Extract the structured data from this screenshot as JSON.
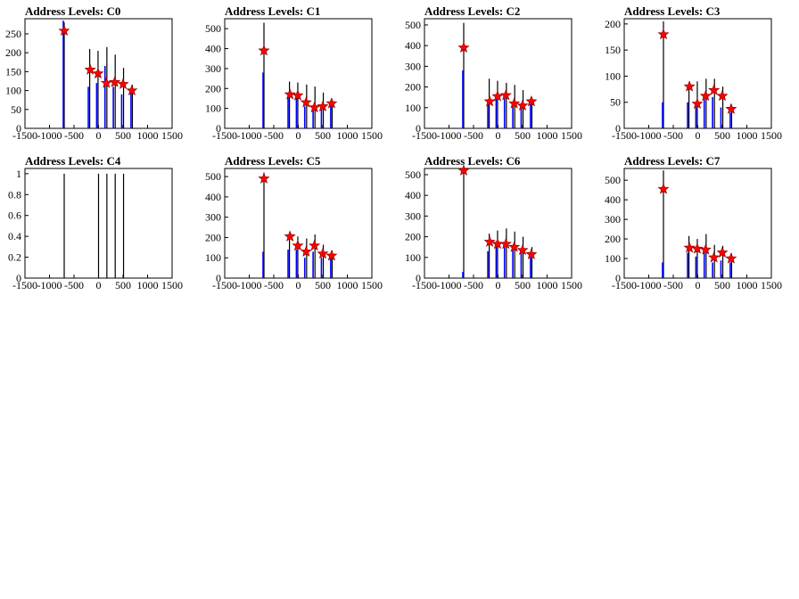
{
  "figure": {
    "background": "#ffffff"
  },
  "colors": {
    "overflow_hist": "#000000",
    "filtered_hist": "#0000ff",
    "marker": "#ff0000",
    "marker_outline": "#800000"
  },
  "chart_data": [
    {
      "type": "bar",
      "title": "Address Levels: C0",
      "xlabel": "",
      "ylabel": "",
      "xlim": [
        -1500,
        1500
      ],
      "ylim": [
        0,
        290
      ],
      "xticks": [
        -1500,
        -1000,
        -500,
        0,
        500,
        1000,
        1500
      ],
      "yticks": [
        0,
        50,
        100,
        150,
        200,
        250
      ],
      "ytick_labels": [
        "0",
        "50",
        "100",
        "150",
        "200",
        "250"
      ],
      "black_spikes": [
        {
          "x": -700,
          "y": 280
        },
        {
          "x": -180,
          "y": 210
        },
        {
          "x": -10,
          "y": 205
        },
        {
          "x": 170,
          "y": 215
        },
        {
          "x": 340,
          "y": 195
        },
        {
          "x": 510,
          "y": 160
        },
        {
          "x": 690,
          "y": 115
        }
      ],
      "blue_spikes": [
        {
          "x": -700,
          "y": 285
        },
        {
          "x": -190,
          "y": 110
        },
        {
          "x": -20,
          "y": 120
        },
        {
          "x": 150,
          "y": 165
        },
        {
          "x": 320,
          "y": 110
        },
        {
          "x": 490,
          "y": 90
        },
        {
          "x": 680,
          "y": 95
        }
      ],
      "markers": [
        {
          "x": -700,
          "y": 258
        },
        {
          "x": -170,
          "y": 155
        },
        {
          "x": -10,
          "y": 145
        },
        {
          "x": 160,
          "y": 120
        },
        {
          "x": 330,
          "y": 122
        },
        {
          "x": 500,
          "y": 117
        },
        {
          "x": 680,
          "y": 100
        }
      ]
    },
    {
      "type": "bar",
      "title": "Address Levels: C1",
      "xlabel": "",
      "ylabel": "",
      "xlim": [
        -1500,
        1500
      ],
      "ylim": [
        0,
        550
      ],
      "xticks": [
        -1500,
        -1000,
        -500,
        0,
        500,
        1000,
        1500
      ],
      "yticks": [
        0,
        100,
        200,
        300,
        400,
        500
      ],
      "ytick_labels": [
        "0",
        "100",
        "200",
        "300",
        "400",
        "500"
      ],
      "black_spikes": [
        {
          "x": -700,
          "y": 530
        },
        {
          "x": -180,
          "y": 235
        },
        {
          "x": -10,
          "y": 230
        },
        {
          "x": 170,
          "y": 220
        },
        {
          "x": 340,
          "y": 210
        },
        {
          "x": 510,
          "y": 180
        },
        {
          "x": 690,
          "y": 140
        }
      ],
      "blue_spikes": [
        {
          "x": -700,
          "y": 280
        },
        {
          "x": -190,
          "y": 160
        },
        {
          "x": -20,
          "y": 160
        },
        {
          "x": 150,
          "y": 110
        },
        {
          "x": 320,
          "y": 110
        },
        {
          "x": 490,
          "y": 100
        },
        {
          "x": 680,
          "y": 130
        }
      ],
      "markers": [
        {
          "x": -700,
          "y": 390
        },
        {
          "x": -170,
          "y": 170
        },
        {
          "x": -10,
          "y": 165
        },
        {
          "x": 160,
          "y": 130
        },
        {
          "x": 330,
          "y": 105
        },
        {
          "x": 500,
          "y": 110
        },
        {
          "x": 680,
          "y": 125
        }
      ]
    },
    {
      "type": "bar",
      "title": "Address Levels: C2",
      "xlabel": "",
      "ylabel": "",
      "xlim": [
        -1500,
        1500
      ],
      "ylim": [
        0,
        530
      ],
      "xticks": [
        -1500,
        -1000,
        -500,
        0,
        500,
        1000,
        1500
      ],
      "yticks": [
        0,
        100,
        200,
        300,
        400,
        500
      ],
      "ytick_labels": [
        "0",
        "100",
        "200",
        "300",
        "400",
        "500"
      ],
      "black_spikes": [
        {
          "x": -700,
          "y": 510
        },
        {
          "x": -180,
          "y": 240
        },
        {
          "x": -10,
          "y": 230
        },
        {
          "x": 170,
          "y": 220
        },
        {
          "x": 340,
          "y": 210
        },
        {
          "x": 510,
          "y": 185
        },
        {
          "x": 690,
          "y": 150
        }
      ],
      "blue_spikes": [
        {
          "x": -700,
          "y": 280
        },
        {
          "x": -190,
          "y": 120
        },
        {
          "x": -20,
          "y": 160
        },
        {
          "x": 150,
          "y": 150
        },
        {
          "x": 320,
          "y": 110
        },
        {
          "x": 490,
          "y": 100
        },
        {
          "x": 680,
          "y": 120
        }
      ],
      "markers": [
        {
          "x": -700,
          "y": 390
        },
        {
          "x": -170,
          "y": 130
        },
        {
          "x": -10,
          "y": 155
        },
        {
          "x": 160,
          "y": 160
        },
        {
          "x": 330,
          "y": 120
        },
        {
          "x": 500,
          "y": 110
        },
        {
          "x": 680,
          "y": 130
        }
      ]
    },
    {
      "type": "bar",
      "title": "Address Levels: C3",
      "xlabel": "",
      "ylabel": "",
      "xlim": [
        -1500,
        1500
      ],
      "ylim": [
        0,
        210
      ],
      "xticks": [
        -1500,
        -1000,
        -500,
        0,
        500,
        1000,
        1500
      ],
      "yticks": [
        0,
        50,
        100,
        150,
        200
      ],
      "ytick_labels": [
        "0",
        "50",
        "100",
        "150",
        "200"
      ],
      "black_spikes": [
        {
          "x": -700,
          "y": 205
        },
        {
          "x": -180,
          "y": 85
        },
        {
          "x": -10,
          "y": 90
        },
        {
          "x": 170,
          "y": 95
        },
        {
          "x": 340,
          "y": 95
        },
        {
          "x": 510,
          "y": 80
        },
        {
          "x": 690,
          "y": 45
        }
      ],
      "blue_spikes": [
        {
          "x": -700,
          "y": 50
        },
        {
          "x": -190,
          "y": 50
        },
        {
          "x": -20,
          "y": 40
        },
        {
          "x": 150,
          "y": 60
        },
        {
          "x": 320,
          "y": 60
        },
        {
          "x": 490,
          "y": 40
        },
        {
          "x": 680,
          "y": 30
        }
      ],
      "markers": [
        {
          "x": -700,
          "y": 180
        },
        {
          "x": -170,
          "y": 80
        },
        {
          "x": -10,
          "y": 47
        },
        {
          "x": 160,
          "y": 62
        },
        {
          "x": 330,
          "y": 73
        },
        {
          "x": 500,
          "y": 62
        },
        {
          "x": 680,
          "y": 37
        }
      ]
    },
    {
      "type": "bar",
      "title": "Address Levels: C4",
      "xlabel": "",
      "ylabel": "",
      "xlim": [
        -1500,
        1500
      ],
      "ylim": [
        0,
        1.05
      ],
      "xticks": [
        -1500,
        -1000,
        -500,
        0,
        500,
        1000,
        1500
      ],
      "yticks": [
        0,
        0.2,
        0.4,
        0.6,
        0.8,
        1
      ],
      "ytick_labels": [
        "0",
        "0.2",
        "0.4",
        "0.6",
        "0.8",
        "1"
      ],
      "black_spikes": [
        {
          "x": -700,
          "y": 1
        },
        {
          "x": 0,
          "y": 1
        },
        {
          "x": 170,
          "y": 1
        },
        {
          "x": 340,
          "y": 1
        },
        {
          "x": 510,
          "y": 1
        }
      ],
      "blue_spikes": [],
      "markers": []
    },
    {
      "type": "bar",
      "title": "Address Levels: C5",
      "xlabel": "",
      "ylabel": "",
      "xlim": [
        -1500,
        1500
      ],
      "ylim": [
        0,
        540
      ],
      "xticks": [
        -1500,
        -1000,
        -500,
        0,
        500,
        1000,
        1500
      ],
      "yticks": [
        0,
        100,
        200,
        300,
        400,
        500
      ],
      "ytick_labels": [
        "0",
        "100",
        "200",
        "300",
        "400",
        "500"
      ],
      "black_spikes": [
        {
          "x": -700,
          "y": 520
        },
        {
          "x": -180,
          "y": 215
        },
        {
          "x": -10,
          "y": 205
        },
        {
          "x": 170,
          "y": 195
        },
        {
          "x": 340,
          "y": 215
        },
        {
          "x": 510,
          "y": 165
        },
        {
          "x": 690,
          "y": 135
        }
      ],
      "blue_spikes": [
        {
          "x": -700,
          "y": 130
        },
        {
          "x": -190,
          "y": 140
        },
        {
          "x": -20,
          "y": 140
        },
        {
          "x": 150,
          "y": 100
        },
        {
          "x": 320,
          "y": 130
        },
        {
          "x": 490,
          "y": 100
        },
        {
          "x": 680,
          "y": 100
        }
      ],
      "markers": [
        {
          "x": -700,
          "y": 490
        },
        {
          "x": -170,
          "y": 205
        },
        {
          "x": -10,
          "y": 160
        },
        {
          "x": 160,
          "y": 130
        },
        {
          "x": 330,
          "y": 160
        },
        {
          "x": 500,
          "y": 120
        },
        {
          "x": 680,
          "y": 110
        }
      ]
    },
    {
      "type": "bar",
      "title": "Address Levels: C6",
      "xlabel": "",
      "ylabel": "",
      "xlim": [
        -1500,
        1500
      ],
      "ylim": [
        0,
        530
      ],
      "xticks": [
        -1500,
        -1000,
        -500,
        0,
        500,
        1000,
        1500
      ],
      "yticks": [
        0,
        100,
        200,
        300,
        400,
        500
      ],
      "ytick_labels": [
        "0",
        "100",
        "200",
        "300",
        "400",
        "500"
      ],
      "black_spikes": [
        {
          "x": -700,
          "y": 525
        },
        {
          "x": -180,
          "y": 215
        },
        {
          "x": -10,
          "y": 230
        },
        {
          "x": 170,
          "y": 240
        },
        {
          "x": 340,
          "y": 225
        },
        {
          "x": 510,
          "y": 200
        },
        {
          "x": 690,
          "y": 150
        }
      ],
      "blue_spikes": [
        {
          "x": -700,
          "y": 30
        },
        {
          "x": -190,
          "y": 130
        },
        {
          "x": -20,
          "y": 150
        },
        {
          "x": 150,
          "y": 160
        },
        {
          "x": 320,
          "y": 150
        },
        {
          "x": 490,
          "y": 130
        },
        {
          "x": 680,
          "y": 100
        }
      ],
      "markers": [
        {
          "x": -700,
          "y": 520
        },
        {
          "x": -170,
          "y": 175
        },
        {
          "x": -10,
          "y": 165
        },
        {
          "x": 160,
          "y": 165
        },
        {
          "x": 330,
          "y": 150
        },
        {
          "x": 500,
          "y": 135
        },
        {
          "x": 680,
          "y": 115
        }
      ]
    },
    {
      "type": "bar",
      "title": "Address Levels: C7",
      "xlabel": "",
      "ylabel": "",
      "xlim": [
        -1500,
        1500
      ],
      "ylim": [
        0,
        560
      ],
      "xticks": [
        -1500,
        -1000,
        -500,
        0,
        500,
        1000,
        1500
      ],
      "yticks": [
        0,
        100,
        200,
        300,
        400,
        500
      ],
      "ytick_labels": [
        "0",
        "100",
        "200",
        "300",
        "400",
        "500"
      ],
      "black_spikes": [
        {
          "x": -700,
          "y": 550
        },
        {
          "x": -180,
          "y": 215
        },
        {
          "x": -10,
          "y": 200
        },
        {
          "x": 170,
          "y": 225
        },
        {
          "x": 340,
          "y": 170
        },
        {
          "x": 510,
          "y": 165
        },
        {
          "x": 690,
          "y": 125
        }
      ],
      "blue_spikes": [
        {
          "x": -700,
          "y": 80
        },
        {
          "x": -190,
          "y": 130
        },
        {
          "x": -20,
          "y": 110
        },
        {
          "x": 150,
          "y": 130
        },
        {
          "x": 320,
          "y": 80
        },
        {
          "x": 490,
          "y": 90
        },
        {
          "x": 680,
          "y": 80
        }
      ],
      "markers": [
        {
          "x": -700,
          "y": 455
        },
        {
          "x": -170,
          "y": 155
        },
        {
          "x": -10,
          "y": 150
        },
        {
          "x": 160,
          "y": 145
        },
        {
          "x": 330,
          "y": 105
        },
        {
          "x": 500,
          "y": 130
        },
        {
          "x": 680,
          "y": 100
        }
      ]
    }
  ]
}
